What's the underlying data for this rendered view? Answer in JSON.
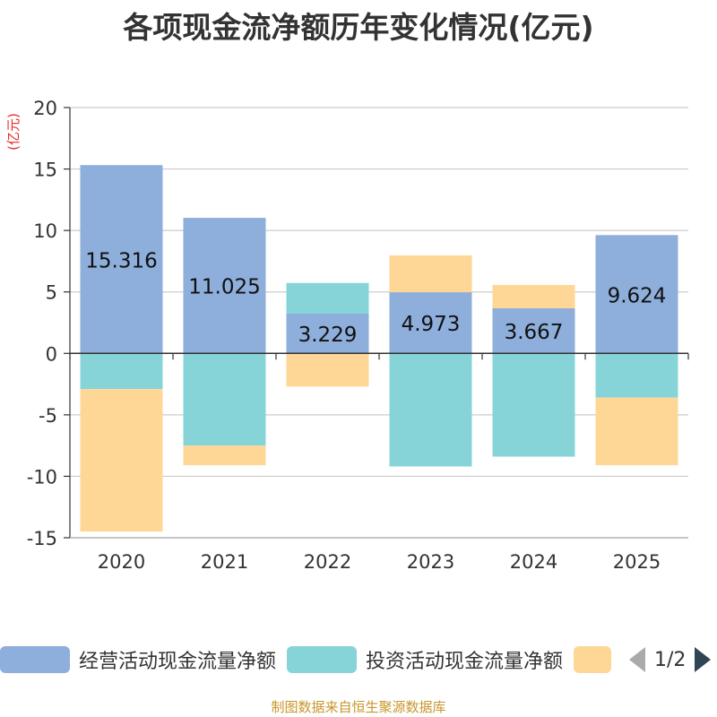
{
  "chart_data": {
    "type": "bar",
    "stacked": true,
    "title": "各项现金流净额历年变化情况(亿元)",
    "ylabel": "(亿元)",
    "xlabel": "",
    "ylim": [
      -15,
      20
    ],
    "yticks": [
      20,
      15,
      10,
      5,
      0,
      -5,
      -10,
      -15
    ],
    "categories": [
      "2020",
      "2021",
      "2022",
      "2023",
      "2024",
      "2025"
    ],
    "series": [
      {
        "name": "经营活动现金流量净额",
        "color": "#8eaedb",
        "values": [
          15.316,
          11.025,
          3.229,
          4.973,
          3.667,
          9.624
        ]
      },
      {
        "name": "投资活动现金流量净额",
        "color": "#86d4d8",
        "values": [
          -2.9,
          -7.5,
          2.5,
          -9.2,
          -8.4,
          -3.6
        ]
      },
      {
        "name": "",
        "color": "#fed796",
        "values": [
          -11.6,
          -1.6,
          -2.7,
          3.0,
          1.9,
          -5.5
        ]
      }
    ],
    "data_labels": [
      "15.316",
      "11.025",
      "3.229",
      "4.973",
      "3.667",
      "9.624"
    ],
    "legend": {
      "position": "bottom",
      "page": "1/2"
    }
  },
  "source": "制图数据来自恒生聚源数据库"
}
